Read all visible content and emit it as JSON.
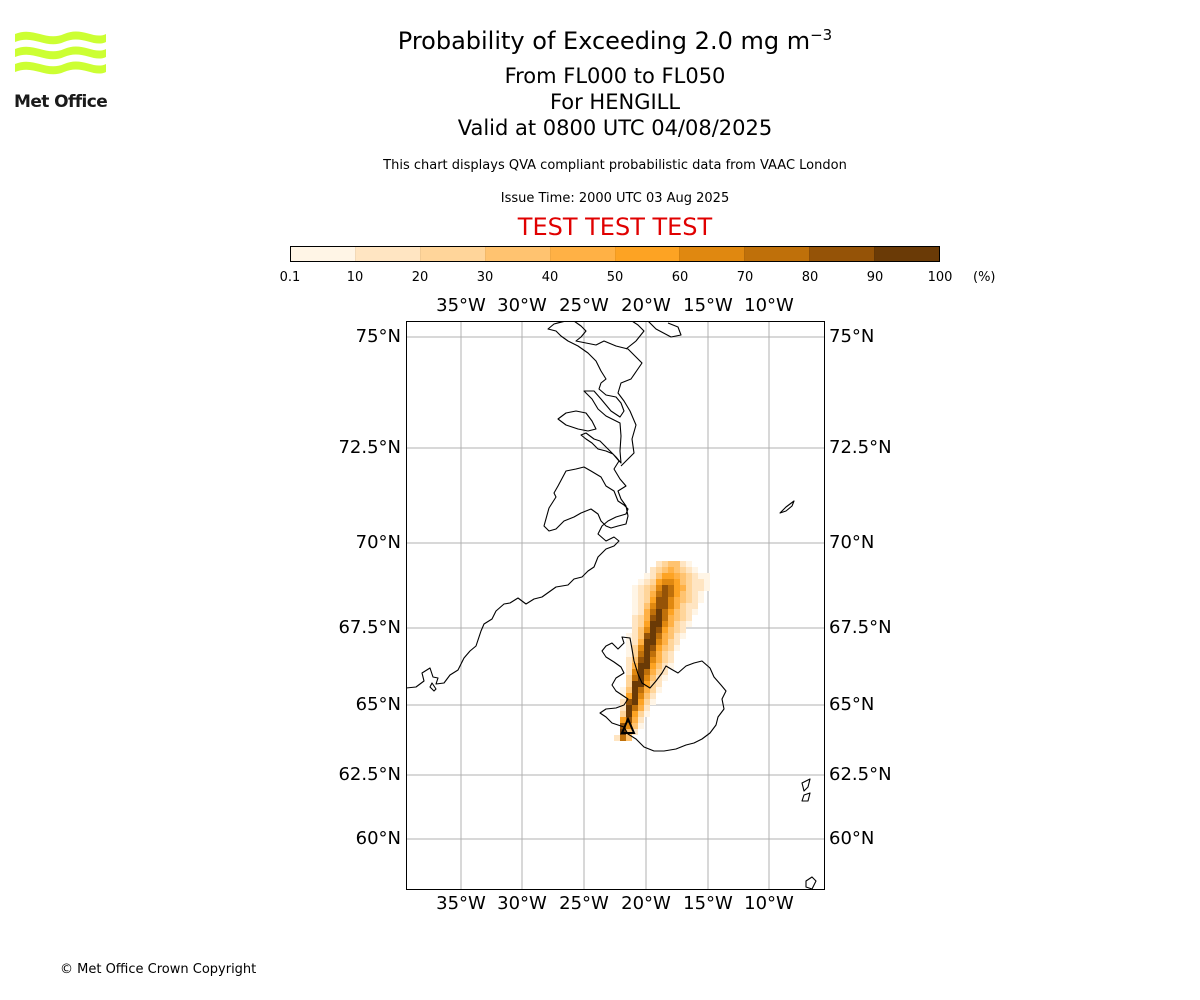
{
  "header": {
    "title_main": "Probability of Exceeding 2.0 mg m",
    "title_exponent": "−3",
    "level_range": "From FL000 to FL050",
    "volcano": "For HENGILL",
    "valid_time": "Valid at 0800 UTC 04/08/2025",
    "subtitle": "This chart displays QVA compliant probabilistic data from VAAC London",
    "issue_time": "Issue Time: 2000 UTC 03 Aug 2025",
    "test_banner": "TEST TEST TEST",
    "test_color": "#e00000"
  },
  "logo": {
    "text": "Met Office",
    "color": "#ccff33",
    "icon": "met-office-wave-logo"
  },
  "colorbar": {
    "ticks": [
      "0.1",
      "10",
      "20",
      "30",
      "40",
      "50",
      "60",
      "70",
      "80",
      "90",
      "100"
    ],
    "unit": "(%)",
    "colors": [
      "#fff5e6",
      "#ffe5c2",
      "#ffd59a",
      "#ffc370",
      "#ffb145",
      "#fda323",
      "#e08810",
      "#bf700a",
      "#955307",
      "#6a3a06"
    ]
  },
  "map": {
    "lon_labels": [
      "35°W",
      "30°W",
      "25°W",
      "20°W",
      "15°W",
      "10°W"
    ],
    "lat_labels": [
      "75°N",
      "72.5°N",
      "70°N",
      "67.5°N",
      "65°N",
      "62.5°N",
      "60°N"
    ],
    "grid_color": "#b0b0b0",
    "volcano_marker": "volcano-triangle"
  },
  "footer": {
    "copyright": "© Met Office Crown Copyright"
  }
}
